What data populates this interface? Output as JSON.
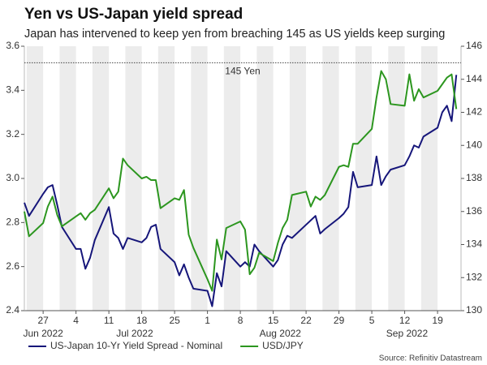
{
  "chart_data": {
    "type": "line",
    "title": "Yen vs US-Japan yield spread",
    "subtitle": "Japan has intervened to keep yen from breaching 145 as US yields keep surging",
    "source": "Source: Refinitiv Datastream",
    "x": [
      "2022-06-23",
      "2022-06-24",
      "2022-06-27",
      "2022-06-28",
      "2022-06-29",
      "2022-06-30",
      "2022-07-01",
      "2022-07-04",
      "2022-07-05",
      "2022-07-06",
      "2022-07-07",
      "2022-07-08",
      "2022-07-11",
      "2022-07-12",
      "2022-07-13",
      "2022-07-14",
      "2022-07-15",
      "2022-07-18",
      "2022-07-19",
      "2022-07-20",
      "2022-07-21",
      "2022-07-22",
      "2022-07-25",
      "2022-07-26",
      "2022-07-27",
      "2022-07-28",
      "2022-07-29",
      "2022-08-01",
      "2022-08-02",
      "2022-08-03",
      "2022-08-04",
      "2022-08-05",
      "2022-08-08",
      "2022-08-09",
      "2022-08-10",
      "2022-08-11",
      "2022-08-12",
      "2022-08-15",
      "2022-08-16",
      "2022-08-17",
      "2022-08-18",
      "2022-08-19",
      "2022-08-22",
      "2022-08-23",
      "2022-08-24",
      "2022-08-25",
      "2022-08-26",
      "2022-08-29",
      "2022-08-30",
      "2022-08-31",
      "2022-09-01",
      "2022-09-02",
      "2022-09-05",
      "2022-09-06",
      "2022-09-07",
      "2022-09-08",
      "2022-09-09",
      "2022-09-12",
      "2022-09-13",
      "2022-09-14",
      "2022-09-15",
      "2022-09-16",
      "2022-09-19",
      "2022-09-20",
      "2022-09-21",
      "2022-09-22",
      "2022-09-23"
    ],
    "series": [
      {
        "name": "US-Japan 10-Yr Yield Spread - Nominal",
        "color": "#16167a",
        "axis": "y",
        "values": [
          2.89,
          2.83,
          2.93,
          2.96,
          2.97,
          2.88,
          2.78,
          2.68,
          2.68,
          2.59,
          2.64,
          2.72,
          2.87,
          2.75,
          2.73,
          2.68,
          2.73,
          2.71,
          2.73,
          2.78,
          2.79,
          2.68,
          2.62,
          2.56,
          2.61,
          2.55,
          2.5,
          2.49,
          2.42,
          2.57,
          2.51,
          2.67,
          2.6,
          2.62,
          2.6,
          2.7,
          2.67,
          2.6,
          2.63,
          2.7,
          2.74,
          2.73,
          2.79,
          2.81,
          2.83,
          2.75,
          2.77,
          2.82,
          2.84,
          2.87,
          3.03,
          2.96,
          2.97,
          3.1,
          2.97,
          3.01,
          3.04,
          3.06,
          3.1,
          3.15,
          3.14,
          3.19,
          3.23,
          3.3,
          3.33,
          3.26,
          3.47
        ]
      },
      {
        "name": "USD/JPY",
        "color": "#2c961f",
        "axis": "y2",
        "values": [
          136.0,
          134.5,
          135.3,
          136.3,
          136.9,
          135.8,
          135.1,
          135.7,
          135.9,
          135.5,
          135.9,
          136.1,
          137.4,
          136.8,
          137.2,
          139.2,
          138.8,
          138.0,
          138.1,
          137.9,
          137.9,
          136.2,
          136.8,
          136.7,
          137.3,
          134.6,
          133.8,
          131.9,
          131.2,
          134.3,
          133.1,
          135.0,
          135.4,
          134.9,
          132.2,
          132.6,
          133.5,
          133.0,
          134.1,
          135.0,
          135.5,
          137.0,
          137.2,
          136.3,
          136.9,
          136.7,
          137.0,
          138.7,
          138.8,
          138.7,
          140.1,
          140.1,
          141.0,
          142.9,
          144.5,
          144.0,
          142.5,
          142.4,
          144.3,
          142.7,
          143.4,
          142.9,
          143.3,
          143.7,
          144.1,
          144.3,
          142.2
        ]
      }
    ],
    "xlim": [
      "2022-06-23",
      "2022-09-24"
    ],
    "xticks": [
      {
        "value": "2022-06-27",
        "label": "27"
      },
      {
        "value": "2022-07-04",
        "label": "4"
      },
      {
        "value": "2022-07-11",
        "label": "11"
      },
      {
        "value": "2022-07-18",
        "label": "18"
      },
      {
        "value": "2022-07-25",
        "label": "25"
      },
      {
        "value": "2022-08-01",
        "label": "1"
      },
      {
        "value": "2022-08-08",
        "label": "8"
      },
      {
        "value": "2022-08-15",
        "label": "15"
      },
      {
        "value": "2022-08-22",
        "label": "22"
      },
      {
        "value": "2022-08-29",
        "label": "29"
      },
      {
        "value": "2022-09-05",
        "label": "5"
      },
      {
        "value": "2022-09-12",
        "label": "12"
      },
      {
        "value": "2022-09-19",
        "label": "19"
      }
    ],
    "month_labels": [
      {
        "value": "2022-06",
        "label": "Jun 2022"
      },
      {
        "value": "2022-07",
        "label": "Jul 2022"
      },
      {
        "value": "2022-08",
        "label": "Aug 2022"
      },
      {
        "value": "2022-09",
        "label": "Sep 2022"
      }
    ],
    "ylim": [
      2.4,
      3.6
    ],
    "yticks": [
      2.4,
      2.6,
      2.8,
      {
        "value": 3.0,
        "label": "3.0"
      },
      3.2,
      3.4,
      3.6
    ],
    "y2lim": [
      130,
      146
    ],
    "y2ticks": [
      130,
      132,
      134,
      136,
      138,
      140,
      142,
      144,
      146
    ],
    "reference_lines": [
      {
        "value": 145,
        "label": "145 Yen",
        "axis": "y2"
      }
    ],
    "week_shading": true
  }
}
